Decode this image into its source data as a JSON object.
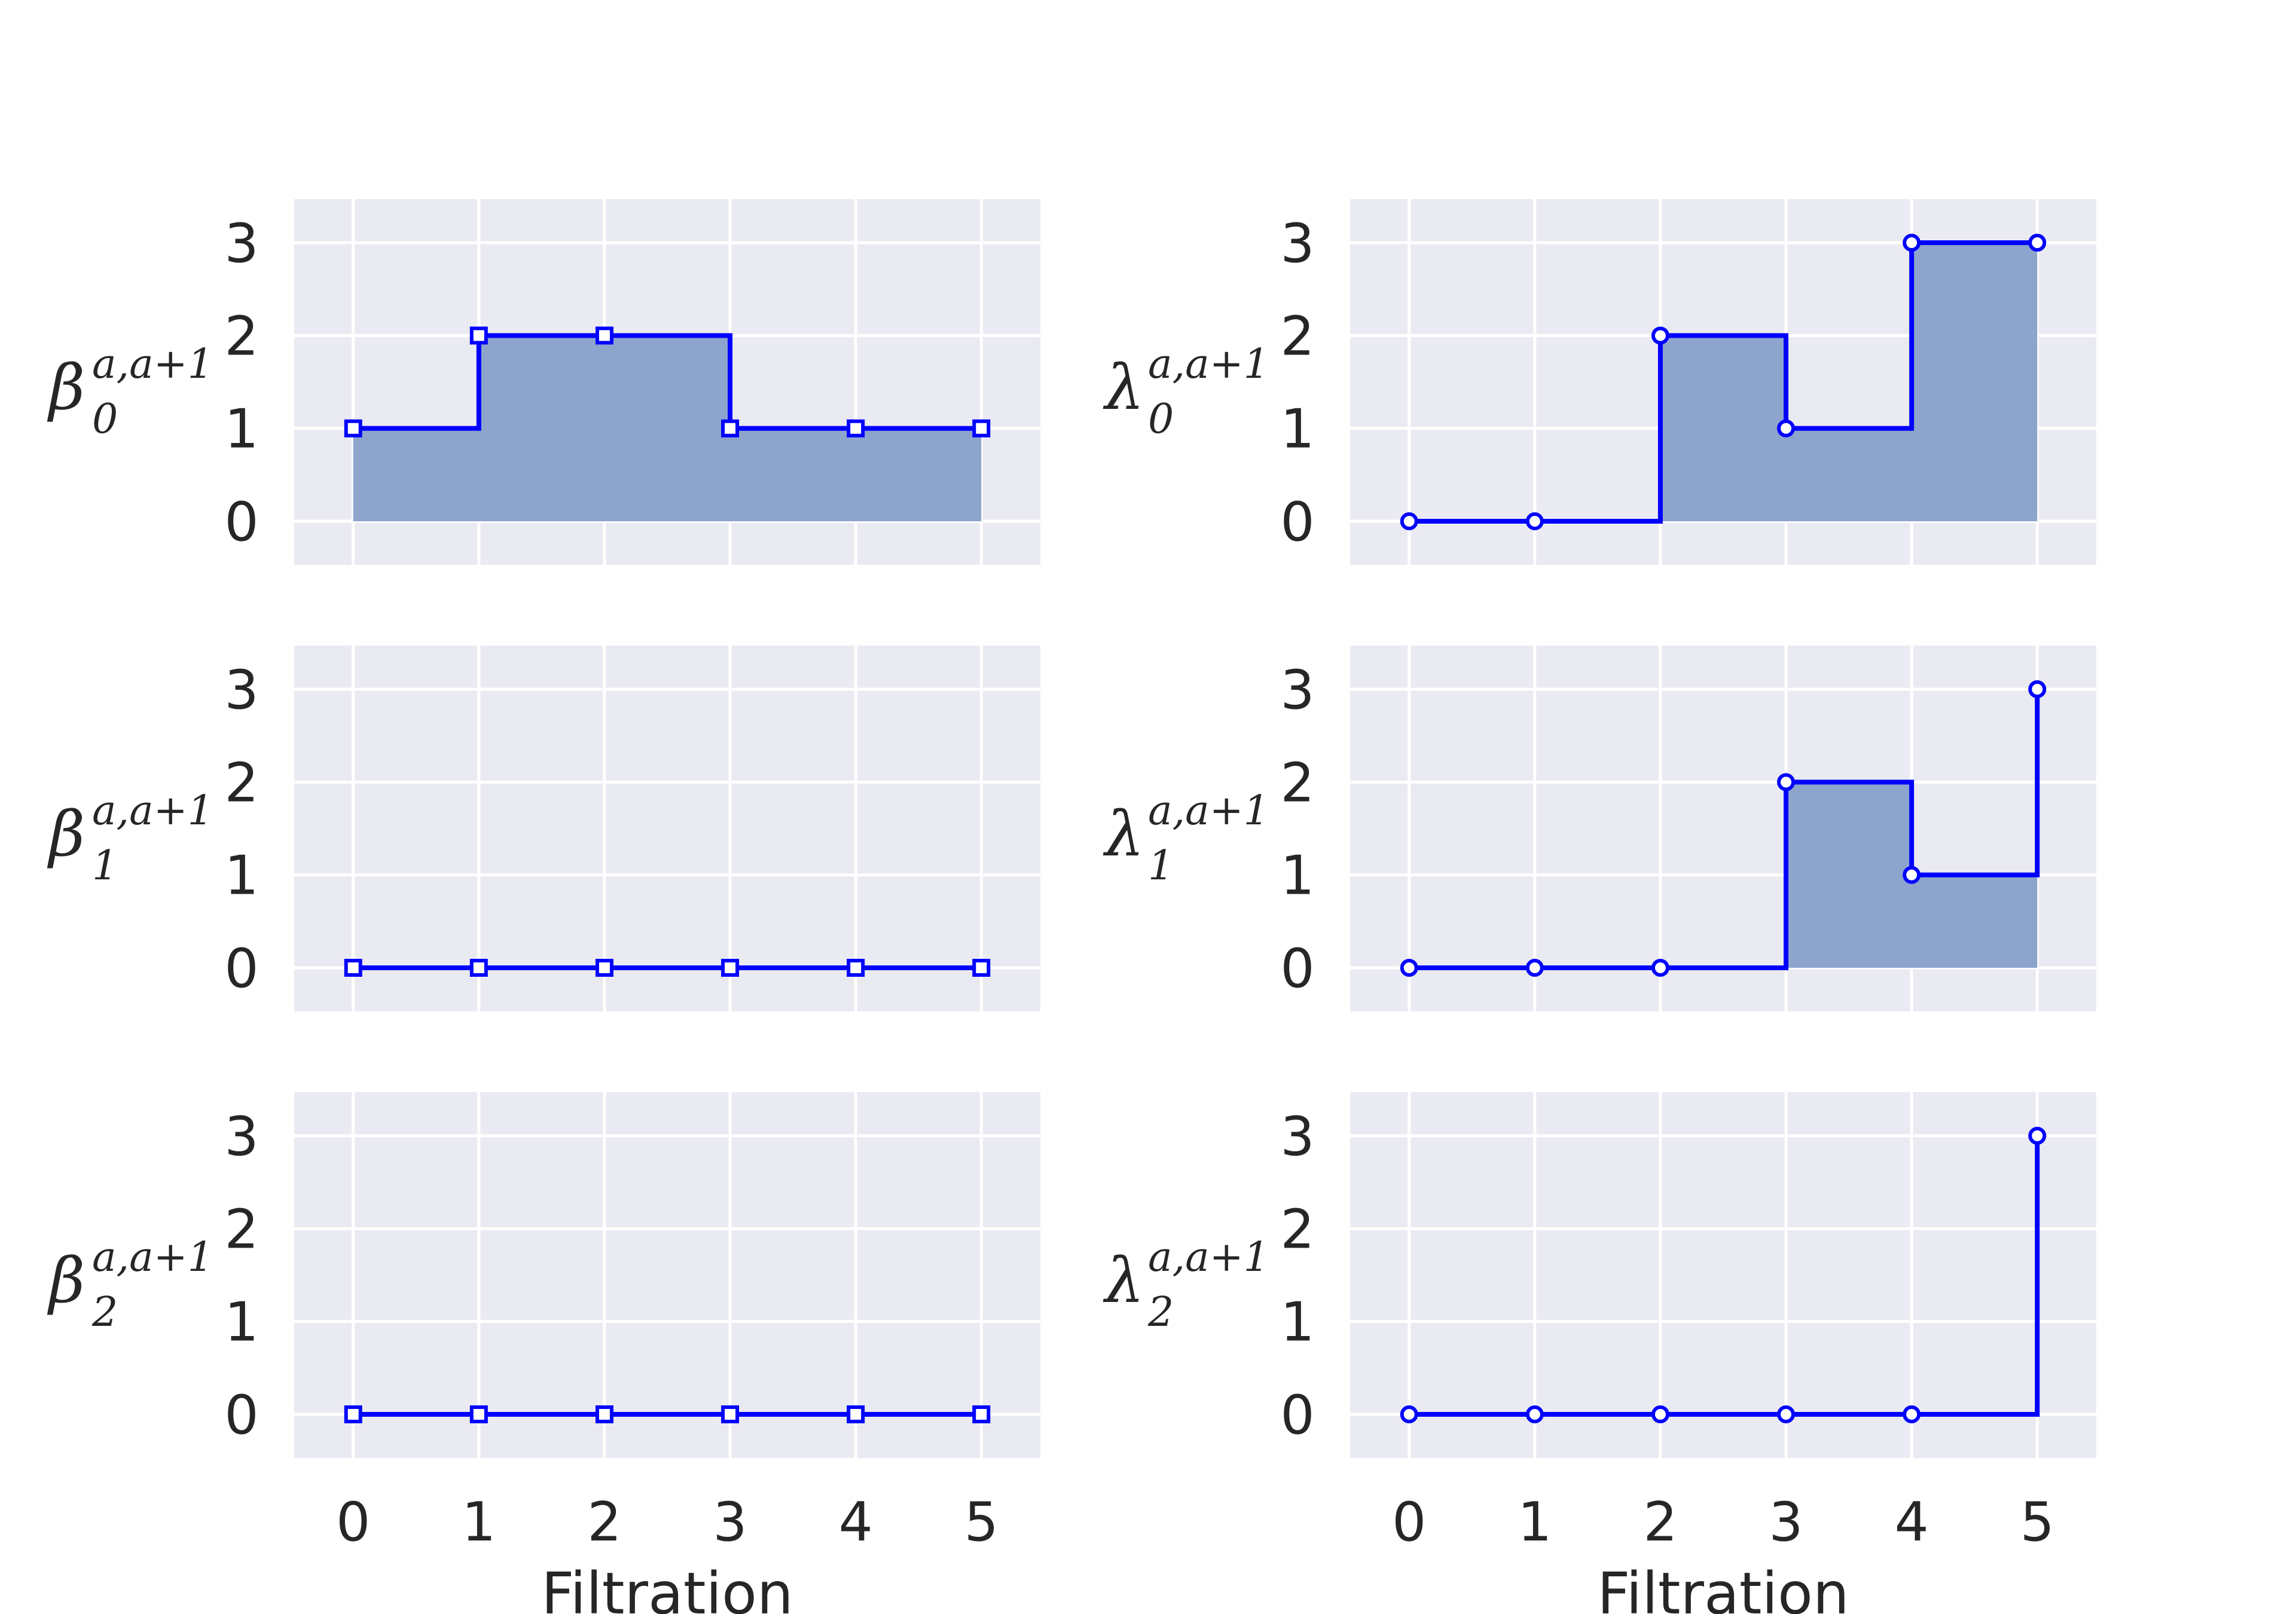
{
  "colors": {
    "panel_bg": "#eaeaf2",
    "grid": "#ffffff",
    "line": "#0000ff",
    "fill": "#8da5cc",
    "text": "#262626"
  },
  "chart_data": [
    {
      "type": "step-area",
      "ylabel": {
        "symbol": "β",
        "subscript": "0",
        "superscript": "a,a+1"
      },
      "x": [
        0,
        1,
        2,
        3,
        4,
        5
      ],
      "values": [
        1,
        2,
        2,
        1,
        1,
        1
      ],
      "marker": "square",
      "filled": true,
      "xticks": [
        "0",
        "1",
        "2",
        "3",
        "4",
        "5"
      ],
      "yticks": [
        "0",
        "1",
        "2",
        "3"
      ],
      "xlim": [
        -0.47,
        5.47
      ],
      "ylim": [
        -0.47,
        3.47
      ],
      "xlabel": "",
      "grid": true
    },
    {
      "type": "step-area",
      "ylabel": {
        "symbol": "λ",
        "subscript": "0",
        "superscript": "a,a+1"
      },
      "x": [
        0,
        1,
        2,
        3,
        4,
        5
      ],
      "values": [
        0,
        0,
        2,
        1,
        3,
        3
      ],
      "marker": "circle",
      "filled": true,
      "xticks": [
        "0",
        "1",
        "2",
        "3",
        "4",
        "5"
      ],
      "yticks": [
        "0",
        "1",
        "2",
        "3"
      ],
      "xlim": [
        -0.47,
        5.47
      ],
      "ylim": [
        -0.47,
        3.47
      ],
      "xlabel": "",
      "grid": true
    },
    {
      "type": "step-area",
      "ylabel": {
        "symbol": "β",
        "subscript": "1",
        "superscript": "a,a+1"
      },
      "x": [
        0,
        1,
        2,
        3,
        4,
        5
      ],
      "values": [
        0,
        0,
        0,
        0,
        0,
        0
      ],
      "marker": "square",
      "filled": true,
      "xticks": [
        "0",
        "1",
        "2",
        "3",
        "4",
        "5"
      ],
      "yticks": [
        "0",
        "1",
        "2",
        "3"
      ],
      "xlim": [
        -0.47,
        5.47
      ],
      "ylim": [
        -0.47,
        3.47
      ],
      "xlabel": "",
      "grid": true
    },
    {
      "type": "step-area",
      "ylabel": {
        "symbol": "λ",
        "subscript": "1",
        "superscript": "a,a+1"
      },
      "x": [
        0,
        1,
        2,
        3,
        4,
        5
      ],
      "values": [
        0,
        0,
        0,
        2,
        1,
        3
      ],
      "marker": "circle",
      "filled": true,
      "xticks": [
        "0",
        "1",
        "2",
        "3",
        "4",
        "5"
      ],
      "yticks": [
        "0",
        "1",
        "2",
        "3"
      ],
      "xlim": [
        -0.47,
        5.47
      ],
      "ylim": [
        -0.47,
        3.47
      ],
      "xlabel": "",
      "grid": true
    },
    {
      "type": "step-area",
      "ylabel": {
        "symbol": "β",
        "subscript": "2",
        "superscript": "a,a+1"
      },
      "x": [
        0,
        1,
        2,
        3,
        4,
        5
      ],
      "values": [
        0,
        0,
        0,
        0,
        0,
        0
      ],
      "marker": "square",
      "filled": true,
      "xticks": [
        "0",
        "1",
        "2",
        "3",
        "4",
        "5"
      ],
      "yticks": [
        "0",
        "1",
        "2",
        "3"
      ],
      "xlim": [
        -0.47,
        5.47
      ],
      "ylim": [
        -0.47,
        3.47
      ],
      "xlabel": "Filtration",
      "grid": true
    },
    {
      "type": "step-area",
      "ylabel": {
        "symbol": "λ",
        "subscript": "2",
        "superscript": "a,a+1"
      },
      "x": [
        0,
        1,
        2,
        3,
        4,
        5
      ],
      "values": [
        0,
        0,
        0,
        0,
        0,
        3
      ],
      "marker": "circle",
      "filled": true,
      "xticks": [
        "0",
        "1",
        "2",
        "3",
        "4",
        "5"
      ],
      "yticks": [
        "0",
        "1",
        "2",
        "3"
      ],
      "xlim": [
        -0.47,
        5.47
      ],
      "ylim": [
        -0.47,
        3.47
      ],
      "xlabel": "Filtration",
      "grid": true
    }
  ]
}
